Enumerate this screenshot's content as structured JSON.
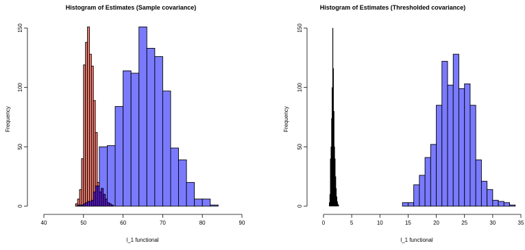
{
  "colors": {
    "blue": "#7a7aff",
    "red": "#f07a6e",
    "purple": "#5a1ad0",
    "black": "#000000",
    "frame": "#000000"
  },
  "chart_data": [
    {
      "type": "bar",
      "title": "Histogram of Estimates (Sample covariance)",
      "xlabel": "l_1 functional",
      "ylabel": "Frequency",
      "xlim": [
        40,
        90
      ],
      "ylim": [
        0,
        150
      ],
      "x_ticks": [
        "40",
        "50",
        "60",
        "70",
        "80",
        "90"
      ],
      "y_ticks": [
        "0",
        "50",
        "100",
        "150"
      ],
      "grid": false,
      "series": [
        {
          "fill": "#7a7aff",
          "bin_width": 2,
          "bin_starts": [
            48,
            50,
            52,
            54,
            56,
            58,
            60,
            62,
            64,
            66,
            68,
            70,
            72,
            74,
            76,
            78,
            80,
            82
          ],
          "values": [
            1,
            2,
            9,
            50,
            51,
            84,
            114,
            112,
            151,
            133,
            126,
            97,
            49,
            39,
            20,
            6,
            6,
            1
          ]
        },
        {
          "fill": "#f07a6e",
          "bin_width": 0.5,
          "bin_starts": [
            48,
            48.5,
            49,
            49.5,
            50,
            50.5,
            51,
            51.5,
            52,
            52.5,
            53,
            53.5,
            54,
            54.5,
            55
          ],
          "values": [
            2,
            6,
            14,
            40,
            119,
            138,
            151,
            128,
            118,
            89,
            62,
            20,
            4,
            2,
            1
          ]
        },
        {
          "fill": "#5a1ad0",
          "bin_width": 0.5,
          "bin_starts": [
            48.5,
            49,
            49.5,
            50,
            50.5,
            51,
            51.5,
            52,
            52.5,
            53,
            53.5,
            54,
            54.5,
            55,
            55.5,
            56,
            56.5,
            57
          ],
          "values": [
            1,
            1,
            1,
            2,
            3,
            4,
            4,
            5,
            12,
            17,
            17,
            12,
            15,
            10,
            6,
            3,
            2,
            1
          ]
        }
      ]
    },
    {
      "type": "bar",
      "title": "Histogram of Estimates (Thresholded covariance)",
      "xlabel": "l_1 functional",
      "ylabel": "Frequency",
      "xlim": [
        0,
        35
      ],
      "ylim": [
        0,
        150
      ],
      "x_ticks": [
        "0",
        "5",
        "10",
        "15",
        "20",
        "25",
        "30",
        "35"
      ],
      "y_ticks": [
        "0",
        "50",
        "100",
        "150"
      ],
      "grid": false,
      "series": [
        {
          "fill": "#7a7aff",
          "bin_width": 1,
          "bin_starts": [
            14,
            15,
            16,
            17,
            18,
            19,
            20,
            21,
            22,
            23,
            24,
            25,
            26,
            27,
            28,
            29,
            30,
            31,
            32,
            33
          ],
          "values": [
            3,
            3,
            18,
            26,
            41,
            52,
            85,
            122,
            102,
            128,
            99,
            103,
            85,
            39,
            21,
            14,
            5,
            4,
            3,
            1
          ]
        },
        {
          "fill": "#000000",
          "bin_width": 0.1,
          "bin_starts": [
            1.0,
            1.1,
            1.2,
            1.3,
            1.4,
            1.5,
            1.6,
            1.7,
            1.8,
            1.9,
            2.0,
            2.1,
            2.2,
            2.3,
            2.4,
            2.5,
            2.6
          ],
          "values": [
            3,
            10,
            40,
            50,
            74,
            100,
            150,
            116,
            80,
            50,
            40,
            25,
            15,
            8,
            4,
            2,
            1
          ]
        }
      ]
    }
  ]
}
